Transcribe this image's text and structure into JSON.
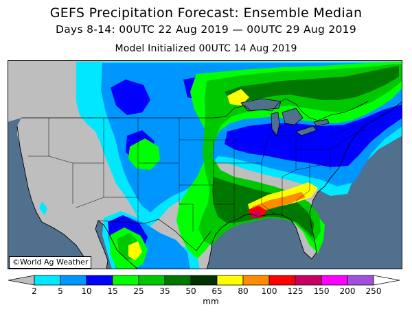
{
  "header": {
    "title": "GEFS Precipitation Forecast: Ensemble Median",
    "period": "Days 8-14: 00UTC 22 Aug 2019 — 00UTC 29 Aug 2019",
    "init": "Model Initialized 00UTC 14 Aug 2019"
  },
  "credit": "©World Ag Weather",
  "legend": {
    "unit": "mm",
    "ticks": [
      "2",
      "5",
      "10",
      "15",
      "25",
      "35",
      "50",
      "65",
      "80",
      "100",
      "125",
      "150",
      "200",
      "250"
    ],
    "colors": [
      "#00e8ff",
      "#0096ff",
      "#0000ff",
      "#00ff00",
      "#00c800",
      "#007800",
      "#003200",
      "#ffff00",
      "#ff8c00",
      "#ff0000",
      "#c80064",
      "#ff00ff",
      "#a050dc"
    ],
    "below_color": "#bebebe",
    "above_color": "#ffffff"
  },
  "map": {
    "ocean_color": "#50708e",
    "land_color": "#bebebe"
  }
}
